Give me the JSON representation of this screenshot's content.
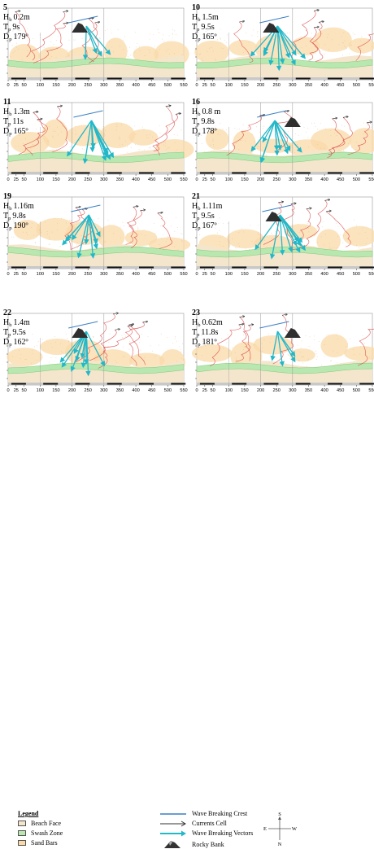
{
  "colors": {
    "beach_face": "#f4e6cc",
    "swash_zone": "#b8e8b0",
    "sand_bars": "#f9d9a8",
    "wave_crest": "#3a7fc4",
    "currents": "#d94040",
    "vectors": "#22b8c8",
    "frame": "#9a9a9a"
  },
  "axis_ticks": [
    "0",
    "25",
    "50",
    "100",
    "150",
    "200",
    "250",
    "300",
    "350",
    "400",
    "450",
    "500",
    "550"
  ],
  "panels": [
    {
      "id": "5",
      "hb_label": "H",
      "hb_sub": "b",
      "hb_val": "0.2m",
      "tp_label": "T",
      "tp_sub": "p",
      "tp_val": "9s",
      "dp_label": "D",
      "dp_sub": "p",
      "dp_val": "179º"
    },
    {
      "id": "10",
      "hb_label": "H",
      "hb_sub": "b",
      "hb_val": "1.5m",
      "tp_label": "T",
      "tp_sub": "p",
      "tp_val": "9.5s",
      "dp_label": "D",
      "dp_sub": "p",
      "dp_val": "165º"
    },
    {
      "id": "11",
      "hb_label": "H",
      "hb_sub": "b",
      "hb_val": "1.3m",
      "tp_label": "T",
      "tp_sub": "p",
      "tp_val": "11s",
      "dp_label": "D",
      "dp_sub": "p",
      "dp_val": "165º"
    },
    {
      "id": "16",
      "hb_label": "H",
      "hb_sub": "b",
      "hb_val": "0.8 m",
      "tp_label": "T",
      "tp_sub": "p",
      "tp_val": "9.8s",
      "dp_label": "D",
      "dp_sub": "p",
      "dp_val": "178º"
    },
    {
      "id": "19",
      "hb_label": "H",
      "hb_sub": "b",
      "hb_val": "1.16m",
      "tp_label": "T",
      "tp_sub": "p",
      "tp_val": "9.8s",
      "dp_label": "D",
      "dp_sub": "p",
      "dp_val": "190º"
    },
    {
      "id": "21",
      "hb_label": "H",
      "hb_sub": "b",
      "hb_val": "1.11m",
      "tp_label": "T",
      "tp_sub": "p",
      "tp_val": "9.5s",
      "dp_label": "D",
      "dp_sub": "p",
      "dp_val": "167º"
    },
    {
      "id": "22",
      "hb_label": "H",
      "hb_sub": "b",
      "hb_val": "1.4m",
      "tp_label": "T",
      "tp_sub": "p",
      "tp_val": "9.5s",
      "dp_label": "D",
      "dp_sub": "p",
      "dp_val": "162º"
    },
    {
      "id": "23",
      "hb_label": "H",
      "hb_sub": "b",
      "hb_val": "0.62m",
      "tp_label": "T",
      "tp_sub": "p",
      "tp_val": "11.8s",
      "dp_label": "D",
      "dp_sub": "p",
      "dp_val": "181º"
    }
  ],
  "legend": {
    "title": "Legend",
    "beach_face": "Beach Face",
    "swash_zone": "Swash Zone",
    "sand_bars": "Sand Bars",
    "wave_crest": "Wave Breaking Crest",
    "currents": "Currents Cell",
    "vectors": "Wave Breaking Vectors",
    "rocky": "Rocky Bank",
    "compass_s": "S",
    "compass_e": "E",
    "compass_w": "W",
    "compass_n": "N"
  }
}
